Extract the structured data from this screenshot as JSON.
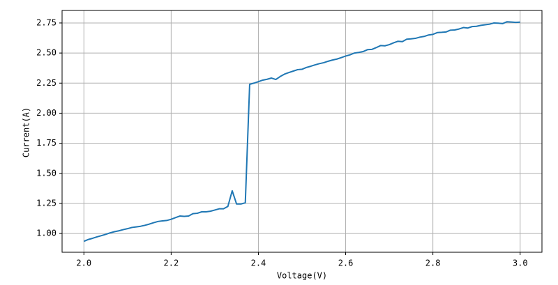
{
  "chart_data": {
    "type": "line",
    "xlabel": "Voltage(V)",
    "ylabel": "Current(A)",
    "x": [
      2.0,
      2.01,
      2.02,
      2.03,
      2.04,
      2.05,
      2.06,
      2.07,
      2.08,
      2.09,
      2.1,
      2.11,
      2.12,
      2.13,
      2.14,
      2.15,
      2.16,
      2.17,
      2.18,
      2.19,
      2.2,
      2.21,
      2.22,
      2.23,
      2.24,
      2.25,
      2.26,
      2.27,
      2.28,
      2.29,
      2.3,
      2.31,
      2.32,
      2.33,
      2.34,
      2.35,
      2.36,
      2.37,
      2.38,
      2.39,
      2.4,
      2.41,
      2.42,
      2.43,
      2.44,
      2.45,
      2.46,
      2.47,
      2.48,
      2.49,
      2.5,
      2.51,
      2.52,
      2.53,
      2.54,
      2.55,
      2.56,
      2.57,
      2.58,
      2.59,
      2.6,
      2.61,
      2.62,
      2.63,
      2.64,
      2.65,
      2.66,
      2.67,
      2.68,
      2.69,
      2.7,
      2.71,
      2.72,
      2.73,
      2.74,
      2.75,
      2.76,
      2.77,
      2.78,
      2.79,
      2.8,
      2.81,
      2.82,
      2.83,
      2.84,
      2.85,
      2.86,
      2.87,
      2.88,
      2.89,
      2.9,
      2.91,
      2.92,
      2.93,
      2.94,
      2.95,
      2.96,
      2.97,
      2.98,
      2.99,
      3.0
    ],
    "series": [
      {
        "color": "#1f77b4",
        "values": [
          0.935,
          0.95,
          0.96,
          0.972,
          0.982,
          0.993,
          1.005,
          1.015,
          1.022,
          1.032,
          1.04,
          1.05,
          1.055,
          1.06,
          1.068,
          1.078,
          1.09,
          1.1,
          1.105,
          1.108,
          1.118,
          1.132,
          1.145,
          1.142,
          1.145,
          1.165,
          1.168,
          1.18,
          1.18,
          1.185,
          1.195,
          1.205,
          1.205,
          1.225,
          1.355,
          1.245,
          1.245,
          1.255,
          2.24,
          2.25,
          2.262,
          2.275,
          2.282,
          2.292,
          2.28,
          2.305,
          2.325,
          2.338,
          2.35,
          2.362,
          2.365,
          2.38,
          2.39,
          2.402,
          2.412,
          2.42,
          2.432,
          2.442,
          2.45,
          2.462,
          2.475,
          2.485,
          2.5,
          2.505,
          2.512,
          2.528,
          2.53,
          2.545,
          2.562,
          2.56,
          2.57,
          2.585,
          2.598,
          2.595,
          2.615,
          2.618,
          2.622,
          2.632,
          2.638,
          2.65,
          2.655,
          2.67,
          2.672,
          2.675,
          2.69,
          2.692,
          2.7,
          2.712,
          2.708,
          2.72,
          2.722,
          2.73,
          2.735,
          2.74,
          2.75,
          2.748,
          2.745,
          2.76,
          2.758,
          2.755,
          2.757
        ]
      }
    ],
    "xlim": [
      1.95,
      3.05
    ],
    "xticks": [
      {
        "value": 2.0,
        "label": "2.0"
      },
      2.2,
      2.4,
      2.6,
      2.8,
      {
        "value": 3.0,
        "label": "3.0"
      }
    ],
    "ylim": [
      0.844,
      2.854
    ],
    "yticks": [
      {
        "value": 1.0,
        "label": "1.00"
      },
      {
        "value": 1.25,
        "label": "1.25"
      },
      {
        "value": 1.5,
        "label": "1.50"
      },
      {
        "value": 1.75,
        "label": "1.75"
      },
      {
        "value": 2.0,
        "label": "2.00"
      },
      {
        "value": 2.25,
        "label": "2.25"
      },
      {
        "value": 2.5,
        "label": "2.50"
      },
      {
        "value": 2.75,
        "label": "2.75"
      }
    ],
    "grid": true
  }
}
